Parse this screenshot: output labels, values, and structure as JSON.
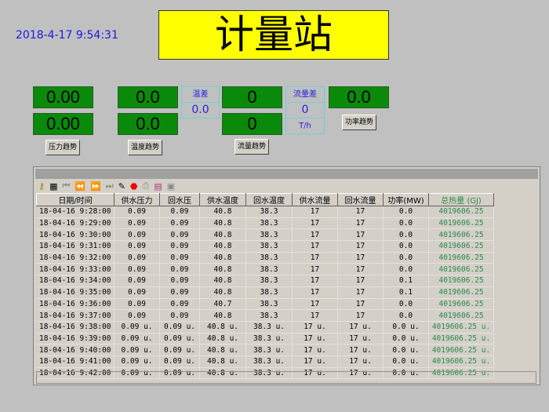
{
  "datetime": "2018-4-17 9:54:31",
  "title": "计量站",
  "displays": {
    "pressure_1": "0.00",
    "pressure_2": "0.00",
    "temp_1": "0.0",
    "temp_2": "0.0",
    "flow_1": "0",
    "flow_2": "0",
    "power": "0.0"
  },
  "temp_diff": {
    "label": "温差",
    "value": "0.0"
  },
  "flow_diff": {
    "label": "流量差",
    "value": "0",
    "unit": "T/h"
  },
  "buttons": {
    "pressure_trend": "压力趋势",
    "temp_trend": "温度趋势",
    "flow_trend": "流量趋势",
    "power_trend": "功率趋势"
  },
  "colors": {
    "display_green": "#0a8a0a",
    "title_yellow": "#ffff00",
    "total_heat_green": "#2a8a4a"
  },
  "table": {
    "headers": [
      "日期/时间",
      "供水压力",
      "回水压",
      "供水温度",
      "回水温度",
      "供水流量",
      "回水流量",
      "功率(MW)",
      "总热量 (GJ)"
    ],
    "rows": [
      [
        "18-04-16 9:28:00",
        "0.09",
        "0.09",
        "40.8",
        "38.3",
        "17",
        "17",
        "0.0",
        "4019606.25"
      ],
      [
        "18-04-16 9:29:00",
        "0.09",
        "0.09",
        "40.8",
        "38.3",
        "17",
        "17",
        "0.0",
        "4019606.25"
      ],
      [
        "18-04-16 9:30:00",
        "0.09",
        "0.09",
        "40.8",
        "38.3",
        "17",
        "17",
        "0.0",
        "4019606.25"
      ],
      [
        "18-04-16 9:31:00",
        "0.09",
        "0.09",
        "40.8",
        "38.3",
        "17",
        "17",
        "0.0",
        "4019606.25"
      ],
      [
        "18-04-16 9:32:00",
        "0.09",
        "0.09",
        "40.8",
        "38.3",
        "17",
        "17",
        "0.0",
        "4019606.25"
      ],
      [
        "18-04-16 9:33:00",
        "0.09",
        "0.09",
        "40.8",
        "38.3",
        "17",
        "17",
        "0.0",
        "4019606.25"
      ],
      [
        "18-04-16 9:34:00",
        "0.09",
        "0.09",
        "40.8",
        "38.3",
        "17",
        "17",
        "0.1",
        "4019606.25"
      ],
      [
        "18-04-16 9:35:00",
        "0.09",
        "0.09",
        "40.8",
        "38.3",
        "17",
        "17",
        "0.1",
        "4019606.25"
      ],
      [
        "18-04-16 9:36:00",
        "0.09",
        "0.09",
        "40.7",
        "38.3",
        "17",
        "17",
        "0.0",
        "4019606.25"
      ],
      [
        "18-04-16 9:37:00",
        "0.09",
        "0.09",
        "40.8",
        "38.3",
        "17",
        "17",
        "0.0",
        "4019606.25"
      ],
      [
        "18-04-16 9:38:00",
        "0.09 u.",
        "0.09 u.",
        "40.8 u.",
        "38.3 u.",
        "17 u.",
        "17 u.",
        "0.0 u.",
        "4019606.25 u."
      ],
      [
        "18-04-16 9:39:00",
        "0.09 u.",
        "0.09 u.",
        "40.8 u.",
        "38.3 u.",
        "17 u.",
        "17 u.",
        "0.0 u.",
        "4019606.25 u."
      ],
      [
        "18-04-16 9:40:00",
        "0.09 u.",
        "0.09 u.",
        "40.8 u.",
        "38.3 u.",
        "17 u.",
        "17 u.",
        "0.0 u.",
        "4019606.25 u."
      ],
      [
        "18-04-16 9:41:00",
        "0.09 u.",
        "0.09 u.",
        "40.8 u.",
        "38.3 u.",
        "17 u.",
        "17 u.",
        "0.0 u.",
        "4019606.25 u."
      ],
      [
        "18-04-16 9:42:00",
        "0.09 u.",
        "0.09 u.",
        "40.8 u.",
        "38.3 u.",
        "17 u.",
        "17 u.",
        "0.0 u.",
        "4019606.25 u."
      ]
    ]
  },
  "toolbar_icons": [
    "key-icon",
    "grid-icon",
    "first-icon",
    "prev-icon",
    "next-icon",
    "last-icon",
    "pencil-icon",
    "stop-icon",
    "print-icon",
    "chart-icon",
    "export-icon"
  ]
}
